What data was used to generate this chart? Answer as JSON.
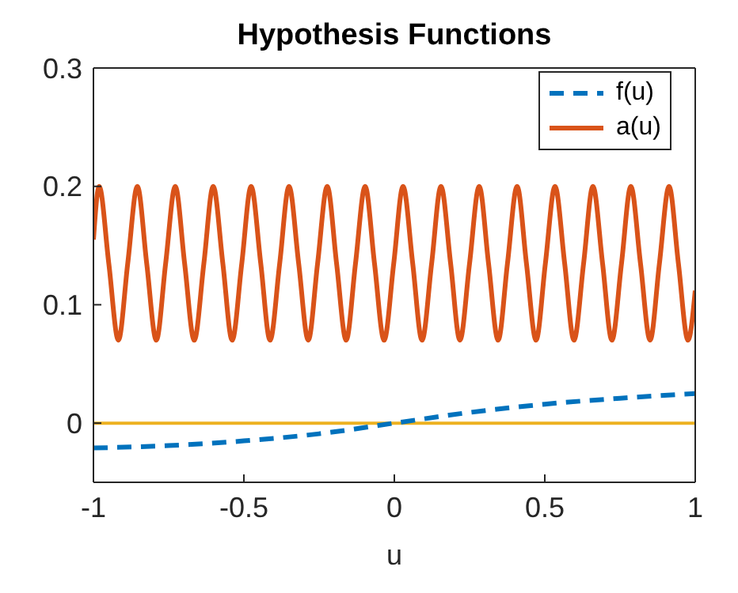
{
  "chart_data": {
    "type": "line",
    "title": "Hypothesis Functions",
    "xlabel": "u",
    "xlim": [
      -1,
      1
    ],
    "xticks": [
      -1,
      -0.5,
      0,
      0.5,
      1
    ],
    "ylim": [
      -0.05,
      0.3
    ],
    "yticks": [
      0,
      0.1,
      0.2,
      0.3
    ],
    "legend": "top right",
    "series": [
      {
        "name": "f(u)",
        "color": "#0072bd",
        "line_style": "dashed",
        "x": [
          -1,
          -0.75,
          -0.5,
          -0.25,
          0,
          0.25,
          0.5,
          0.75,
          1
        ],
        "values": [
          -0.021,
          -0.019,
          -0.015,
          -0.009,
          0,
          0.009,
          0.016,
          0.021,
          0.025
        ]
      },
      {
        "name": "a(u)",
        "color": "#d95319",
        "line_style": "solid",
        "x": [
          -1,
          -0.981,
          -0.949,
          -0.917,
          -0.886,
          -0.854,
          -0.823,
          -0.791,
          -0.76,
          -0.728,
          -0.697,
          -0.665,
          -0.633,
          -0.602,
          -0.57,
          -0.539,
          -0.507,
          -0.476,
          -0.444,
          -0.413,
          -0.381,
          -0.35,
          -0.318,
          -0.286,
          -0.255,
          -0.223,
          -0.192,
          -0.16,
          -0.129,
          -0.097,
          -0.066,
          -0.034,
          -0.002,
          0.029,
          0.061,
          0.092,
          0.124,
          0.155,
          0.187,
          0.218,
          0.25,
          0.282,
          0.313,
          0.345,
          0.376,
          0.408,
          0.439,
          0.471,
          0.502,
          0.534,
          0.566,
          0.597,
          0.629,
          0.66,
          0.692,
          0.723,
          0.755,
          0.786,
          0.818,
          0.85,
          0.881,
          0.913,
          0.944,
          0.976,
          1
        ],
        "values": [
          0.155,
          0.2,
          0.135,
          0.07,
          0.135,
          0.2,
          0.135,
          0.07,
          0.135,
          0.2,
          0.135,
          0.07,
          0.135,
          0.2,
          0.135,
          0.07,
          0.135,
          0.2,
          0.135,
          0.07,
          0.135,
          0.2,
          0.135,
          0.07,
          0.135,
          0.2,
          0.135,
          0.07,
          0.135,
          0.2,
          0.135,
          0.07,
          0.135,
          0.2,
          0.135,
          0.07,
          0.135,
          0.2,
          0.135,
          0.07,
          0.135,
          0.2,
          0.135,
          0.07,
          0.135,
          0.2,
          0.135,
          0.07,
          0.135,
          0.2,
          0.135,
          0.07,
          0.135,
          0.2,
          0.135,
          0.07,
          0.135,
          0.2,
          0.135,
          0.07,
          0.135,
          0.2,
          0.135,
          0.07,
          0.112
        ]
      }
    ],
    "ref_lines": [
      {
        "axis": "y",
        "value": 0,
        "color": "#edb120"
      }
    ]
  }
}
